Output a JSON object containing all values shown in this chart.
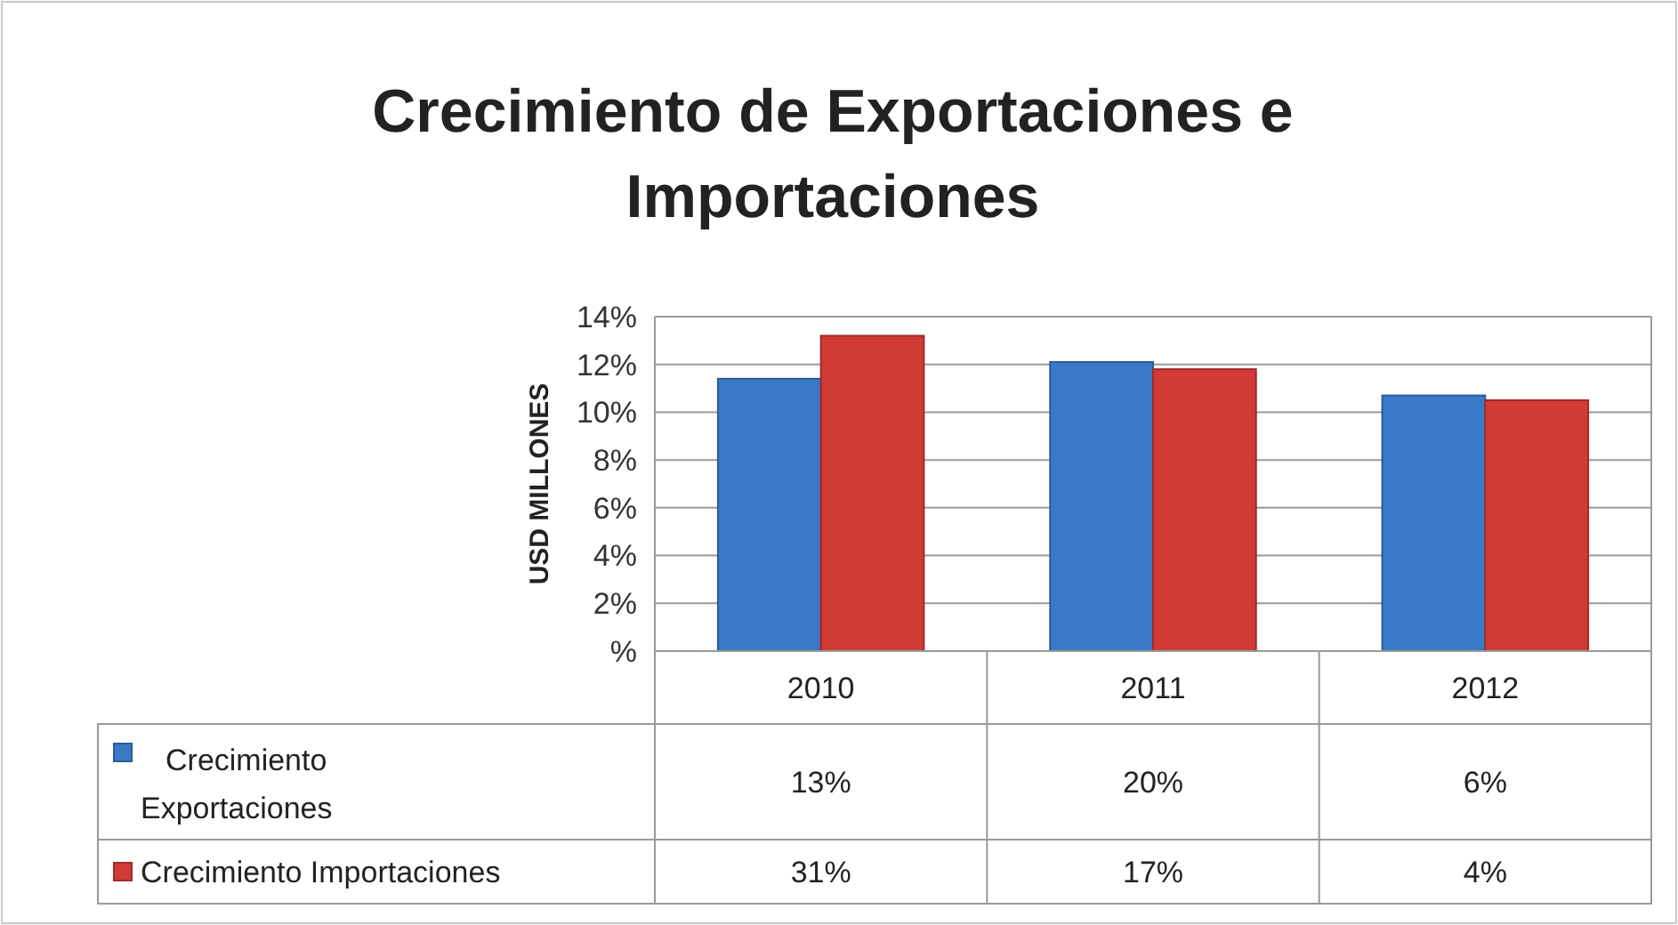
{
  "chart_data": {
    "type": "bar",
    "title": "Crecimiento de Exportaciones e Importaciones",
    "ylabel": "USD MILLONES",
    "categories": [
      "2010",
      "2011",
      "2012"
    ],
    "series": [
      {
        "name": "Crecimiento Exportaciones",
        "color": "#3a78c8",
        "values": [
          11.4,
          12.1,
          10.7
        ]
      },
      {
        "name": "Crecimiento Importaciones",
        "color": "#d23a36",
        "values": [
          13.2,
          11.8,
          10.5
        ]
      }
    ],
    "annotations": [
      "13%",
      "20%",
      "6%",
      "31%",
      "17%",
      "4%"
    ],
    "ylim": [
      0,
      14
    ],
    "yticks": [
      {
        "value": 0,
        "label": "%"
      },
      {
        "value": 2,
        "label": "2%"
      },
      {
        "value": 4,
        "label": "4%"
      },
      {
        "value": 6,
        "label": "6%"
      },
      {
        "value": 8,
        "label": "8%"
      },
      {
        "value": 10,
        "label": "10%"
      },
      {
        "value": 12,
        "label": "12%"
      },
      {
        "value": 14,
        "label": "14%"
      }
    ],
    "grid": "y",
    "legend": "bottom"
  }
}
